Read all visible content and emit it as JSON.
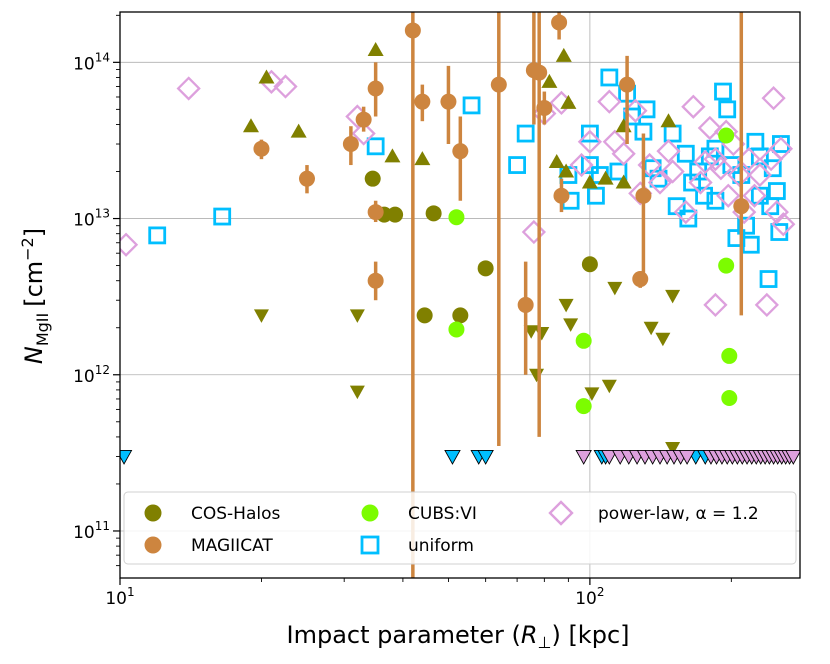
{
  "chart_data": {
    "type": "scatter",
    "xscale": "log",
    "yscale": "log",
    "xlim": [
      10,
      280
    ],
    "ylim": [
      50000000000.0,
      210000000000000.0
    ],
    "grid": true,
    "xlabel": "Impact parameter (R⊥) [kpc]",
    "ylabel": "N_MgII [cm^-2]",
    "xlabel_parts": {
      "pre": "Impact parameter (",
      "sym": "R",
      "sub": "⊥",
      "post": ") [kpc]"
    },
    "ylabel_parts": {
      "sym": "N",
      "sub": "MgII",
      "unit_pre": "[cm",
      "unit_sup": "−2",
      "unit_post": "]"
    },
    "x_ticks": [
      {
        "value": 10,
        "base": "10",
        "exp": "1"
      },
      {
        "value": 100,
        "base": "10",
        "exp": "2"
      }
    ],
    "y_ticks": [
      {
        "value": 100000000000.0,
        "base": "10",
        "exp": "11"
      },
      {
        "value": 1000000000000.0,
        "base": "10",
        "exp": "12"
      },
      {
        "value": 10000000000000.0,
        "base": "10",
        "exp": "13"
      },
      {
        "value": 100000000000000.0,
        "base": "10",
        "exp": "14"
      }
    ],
    "legend": {
      "location": "lower center",
      "entries": [
        {
          "label": "COS-Halos",
          "series": "COS-Halos"
        },
        {
          "label": "MAGIICAT",
          "series": "MAGIICAT"
        },
        {
          "label": "CUBS:VI",
          "series": "CUBS:VI"
        },
        {
          "label": "uniform",
          "series": "uniform"
        },
        {
          "label": "power-law, α = 1.2",
          "series": "power-law"
        }
      ]
    },
    "series": [
      {
        "name": "COS-Halos",
        "color": "#808000",
        "marker": "circle",
        "points": [
          [
            34.5,
            18000000000000.0
          ],
          [
            36.5,
            10600000000000.0
          ],
          [
            38.5,
            10600000000000.0
          ],
          [
            44.5,
            2400000000000.0
          ],
          [
            46.5,
            10800000000000.0
          ],
          [
            53,
            2400000000000.0
          ],
          [
            60,
            4800000000000.0
          ],
          [
            100,
            5100000000000.0
          ]
        ],
        "lower_limits": [
          [
            19,
            39000000000000.0
          ],
          [
            20.5,
            80000000000000.0
          ],
          [
            24,
            36000000000000.0
          ],
          [
            35,
            120000000000000.0
          ],
          [
            38,
            25000000000000.0
          ],
          [
            44,
            24000000000000.0
          ],
          [
            90,
            55000000000000.0
          ],
          [
            88,
            110000000000000.0
          ],
          [
            85,
            23000000000000.0
          ],
          [
            82,
            75000000000000.0
          ],
          [
            89,
            20000000000000.0
          ],
          [
            100,
            17000000000000.0
          ],
          [
            108,
            18000000000000.0
          ],
          [
            118,
            17000000000000.0
          ],
          [
            118,
            39000000000000.0
          ],
          [
            147,
            42000000000000.0
          ]
        ],
        "upper_limits": [
          [
            20,
            2400000000000.0
          ],
          [
            32,
            2400000000000.0
          ],
          [
            32,
            780000000000.0
          ],
          [
            75,
            1900000000000.0
          ],
          [
            77,
            1000000000000.0
          ],
          [
            79,
            1850000000000.0
          ],
          [
            89,
            2800000000000.0
          ],
          [
            91,
            2100000000000.0
          ],
          [
            101,
            760000000000.0
          ],
          [
            110,
            850000000000.0
          ],
          [
            113,
            3600000000000.0
          ],
          [
            135,
            2000000000000.0
          ],
          [
            143,
            1700000000000.0
          ],
          [
            150,
            3200000000000.0
          ],
          [
            150,
            340000000000.0
          ]
        ]
      },
      {
        "name": "MAGIICAT",
        "color": "#cd853f",
        "marker": "circle",
        "points": [
          {
            "x": 20,
            "y": 28000000000000.0,
            "lo": 24000000000000.0,
            "hi": 32000000000000.0
          },
          {
            "x": 25,
            "y": 18000000000000.0,
            "lo": 14500000000000.0,
            "hi": 22000000000000.0
          },
          {
            "x": 31,
            "y": 30000000000000.0,
            "lo": 22000000000000.0,
            "hi": 39000000000000.0
          },
          {
            "x": 33,
            "y": 43000000000000.0,
            "lo": 36000000000000.0,
            "hi": 52000000000000.0
          },
          {
            "x": 35,
            "y": 68000000000000.0,
            "lo": 45000000000000.0,
            "hi": 100000000000000.0
          },
          {
            "x": 35,
            "y": 11000000000000.0,
            "lo": 9500000000000.0,
            "hi": 13000000000000.0
          },
          {
            "x": 35,
            "y": 4000000000000.0,
            "lo": 3000000000000.0,
            "hi": 5300000000000.0
          },
          {
            "x": 42,
            "y": 160000000000000.0,
            "lo": 50000000000.0,
            "hi": 210000000000000.0
          },
          {
            "x": 44,
            "y": 56000000000000.0,
            "lo": 42000000000000.0,
            "hi": 72000000000000.0
          },
          {
            "x": 50,
            "y": 56000000000000.0,
            "lo": 30000000000000.0,
            "hi": 95000000000000.0
          },
          {
            "x": 53,
            "y": 27000000000000.0,
            "lo": 13000000000000.0,
            "hi": 45000000000000.0
          },
          {
            "x": 64,
            "y": 72000000000000.0,
            "lo": 350000000000.0,
            "hi": 210000000000000.0
          },
          {
            "x": 73,
            "y": 2800000000000.0,
            "lo": 1000000000000.0,
            "hi": 5300000000000.0
          },
          {
            "x": 76,
            "y": 89000000000000.0,
            "lo": 40000000000000.0,
            "hi": 210000000000000.0
          },
          {
            "x": 78,
            "y": 86000000000000.0,
            "lo": 400000000000.0,
            "hi": 210000000000000.0
          },
          {
            "x": 80,
            "y": 51000000000000.0,
            "lo": 40000000000000.0,
            "hi": 65000000000000.0
          },
          {
            "x": 86,
            "y": 180000000000000.0,
            "lo": 140000000000000.0,
            "hi": 210000000000000.0
          },
          {
            "x": 87,
            "y": 14000000000000.0,
            "lo": 11000000000000.0,
            "hi": 18000000000000.0
          },
          {
            "x": 120,
            "y": 72000000000000.0,
            "lo": 30000000000000.0,
            "hi": 110000000000000.0
          },
          {
            "x": 128,
            "y": 4100000000000.0,
            "lo": 3600000000000.0,
            "hi": 4600000000000.0
          },
          {
            "x": 130,
            "y": 14000000000000.0,
            "lo": 4500000000000.0,
            "hi": 35000000000000.0
          },
          {
            "x": 210,
            "y": 12000000000000.0,
            "lo": 2400000000000.0,
            "hi": 210000000000000.0
          }
        ]
      },
      {
        "name": "CUBS:VI",
        "color": "#7cfc00",
        "marker": "circle",
        "points": [
          [
            52,
            10200000000000.0
          ],
          [
            52,
            1950000000000.0
          ],
          [
            97,
            630000000000.0
          ],
          [
            97,
            1650000000000.0
          ],
          [
            195,
            34000000000000.0
          ],
          [
            195,
            5000000000000.0
          ],
          [
            198,
            1320000000000.0
          ],
          [
            198,
            710000000000.0
          ]
        ]
      },
      {
        "name": "uniform",
        "color": "#00bfff",
        "marker": "square",
        "points": [
          [
            12,
            7800000000000.0
          ],
          [
            16.5,
            10300000000000.0
          ],
          [
            35,
            29000000000000.0
          ],
          [
            56,
            53000000000000.0
          ],
          [
            70,
            22000000000000.0
          ],
          [
            73,
            35000000000000.0
          ],
          [
            90,
            19000000000000.0
          ],
          [
            91,
            13000000000000.0
          ],
          [
            100,
            35000000000000.0
          ],
          [
            100,
            22000000000000.0
          ],
          [
            103,
            14000000000000.0
          ],
          [
            105,
            19000000000000.0
          ],
          [
            110,
            80000000000000.0
          ],
          [
            115,
            20000000000000.0
          ],
          [
            120,
            63000000000000.0
          ],
          [
            123,
            45000000000000.0
          ],
          [
            130,
            36000000000000.0
          ],
          [
            132,
            50000000000000.0
          ],
          [
            136,
            21000000000000.0
          ],
          [
            140,
            18000000000000.0
          ],
          [
            150,
            35000000000000.0
          ],
          [
            153,
            12000000000000.0
          ],
          [
            160,
            26000000000000.0
          ],
          [
            165,
            17000000000000.0
          ],
          [
            170,
            20000000000000.0
          ],
          [
            180,
            25000000000000.0
          ],
          [
            185,
            13000000000000.0
          ],
          [
            192,
            65000000000000.0
          ],
          [
            196,
            50000000000000.0
          ],
          [
            200,
            22000000000000.0
          ],
          [
            205,
            7500000000000.0
          ],
          [
            210,
            19000000000000.0
          ],
          [
            215,
            9000000000000.0
          ],
          [
            220,
            6800000000000.0
          ],
          [
            225,
            31000000000000.0
          ],
          [
            230,
            14000000000000.0
          ],
          [
            240,
            4100000000000.0
          ],
          [
            245,
            21000000000000.0
          ],
          [
            250,
            15000000000000.0
          ],
          [
            253,
            8200000000000.0
          ],
          [
            255,
            30000000000000.0
          ],
          [
            185,
            28000000000000.0
          ],
          [
            175,
            14000000000000.0
          ],
          [
            162,
            10000000000000.0
          ],
          [
            230,
            25000000000000.0
          ],
          [
            242,
            12000000000000.0
          ]
        ],
        "upper_limits": [
          [
            10.2,
            300000000000.0
          ],
          [
            51,
            300000000000.0
          ],
          [
            58,
            300000000000.0
          ],
          [
            60,
            300000000000.0
          ],
          [
            106,
            300000000000.0
          ],
          [
            108,
            300000000000.0
          ],
          [
            168,
            300000000000.0
          ],
          [
            176,
            300000000000.0
          ]
        ]
      },
      {
        "name": "power-law",
        "color": "#dda0dd",
        "marker": "diamond",
        "points": [
          [
            10.3,
            6800000000000.0
          ],
          [
            14,
            68000000000000.0
          ],
          [
            21,
            75000000000000.0
          ],
          [
            22.5,
            70000000000000.0
          ],
          [
            32,
            45000000000000.0
          ],
          [
            33,
            35000000000000.0
          ],
          [
            76,
            8200000000000.0
          ],
          [
            80,
            47000000000000.0
          ],
          [
            87,
            55000000000000.0
          ],
          [
            96,
            22000000000000.0
          ],
          [
            100,
            31000000000000.0
          ],
          [
            110,
            56000000000000.0
          ],
          [
            113,
            31000000000000.0
          ],
          [
            118,
            26000000000000.0
          ],
          [
            125,
            49000000000000.0
          ],
          [
            128,
            14500000000000.0
          ],
          [
            134,
            22000000000000.0
          ],
          [
            141,
            17000000000000.0
          ],
          [
            147,
            27000000000000.0
          ],
          [
            150,
            20000000000000.0
          ],
          [
            160,
            11000000000000.0
          ],
          [
            166,
            52000000000000.0
          ],
          [
            172,
            17000000000000.0
          ],
          [
            176,
            23000000000000.0
          ],
          [
            180,
            38000000000000.0
          ],
          [
            185,
            2800000000000.0
          ],
          [
            190,
            21000000000000.0
          ],
          [
            197,
            14000000000000.0
          ],
          [
            202,
            30000000000000.0
          ],
          [
            208,
            19000000000000.0
          ],
          [
            213,
            11000000000000.0
          ],
          [
            218,
            24000000000000.0
          ],
          [
            224,
            14000000000000.0
          ],
          [
            230,
            19000000000000.0
          ],
          [
            238,
            2800000000000.0
          ],
          [
            243,
            24000000000000.0
          ],
          [
            246,
            59000000000000.0
          ],
          [
            250,
            11000000000000.0
          ],
          [
            255,
            28000000000000.0
          ],
          [
            258,
            9200000000000.0
          ],
          [
            195,
            36000000000000.0
          ],
          [
            185,
            24000000000000.0
          ]
        ],
        "upper_limits": [
          [
            97,
            300000000000.0
          ],
          [
            110,
            300000000000.0
          ],
          [
            116,
            300000000000.0
          ],
          [
            121,
            300000000000.0
          ],
          [
            126,
            300000000000.0
          ],
          [
            131,
            300000000000.0
          ],
          [
            136,
            300000000000.0
          ],
          [
            141,
            300000000000.0
          ],
          [
            146,
            300000000000.0
          ],
          [
            151,
            300000000000.0
          ],
          [
            156,
            300000000000.0
          ],
          [
            161,
            300000000000.0
          ],
          [
            181,
            300000000000.0
          ],
          [
            186,
            300000000000.0
          ],
          [
            191,
            300000000000.0
          ],
          [
            196,
            300000000000.0
          ],
          [
            201,
            300000000000.0
          ],
          [
            206,
            300000000000.0
          ],
          [
            211,
            300000000000.0
          ],
          [
            216,
            300000000000.0
          ],
          [
            221,
            300000000000.0
          ],
          [
            226,
            300000000000.0
          ],
          [
            231,
            300000000000.0
          ],
          [
            236,
            300000000000.0
          ],
          [
            241,
            300000000000.0
          ],
          [
            246,
            300000000000.0
          ],
          [
            251,
            300000000000.0
          ],
          [
            256,
            300000000000.0
          ],
          [
            261,
            300000000000.0
          ],
          [
            266,
            300000000000.0
          ],
          [
            271,
            300000000000.0
          ]
        ]
      }
    ]
  }
}
